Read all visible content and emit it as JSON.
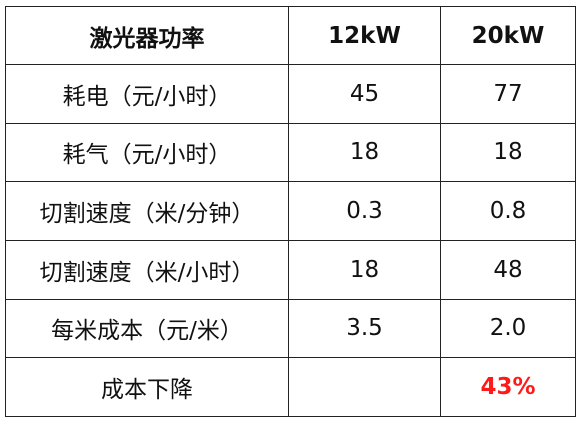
{
  "table": {
    "header": [
      "激光器功率",
      "12kW",
      "20kW"
    ],
    "rows": [
      [
        "耗电（元/小时）",
        "45",
        "77"
      ],
      [
        "耗气（元/小时）",
        "18",
        "18"
      ],
      [
        "切割速度（米/分钟）",
        "0.3",
        "0.8"
      ],
      [
        "切割速度（米/小时）",
        "18",
        "48"
      ],
      [
        "每米成本（元/米）",
        "3.5",
        "2.0"
      ],
      [
        "成本下降",
        "",
        "43%"
      ]
    ]
  }
}
